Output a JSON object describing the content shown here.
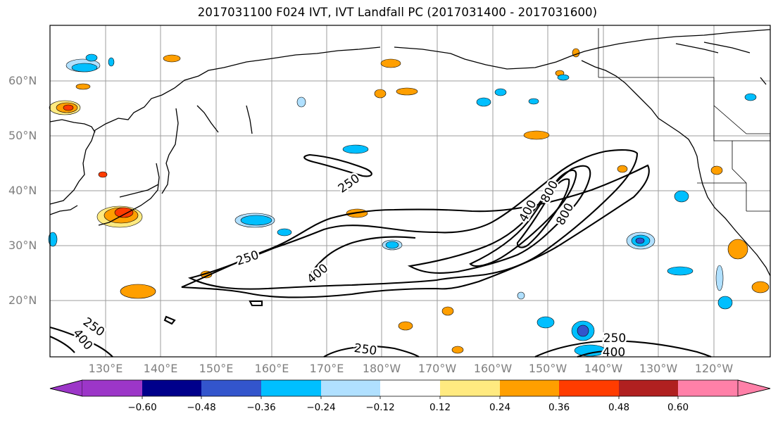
{
  "title": "2017031100 F024 IVT, IVT Landfall PC (2017031400 - 2017031600)",
  "map": {
    "lat_labels": [
      "60°N",
      "50°N",
      "40°N",
      "30°N",
      "20°N"
    ],
    "lon_labels": [
      "130°E",
      "140°E",
      "150°E",
      "160°E",
      "170°E",
      "180°W",
      "170°W",
      "160°W",
      "150°W",
      "140°W",
      "130°W",
      "120°W"
    ],
    "contour_labels": [
      "250",
      "250",
      "400",
      "400",
      "800",
      "800",
      "250",
      "400",
      "250",
      "250",
      "400"
    ],
    "gridlines": true
  },
  "colorbar": {
    "colors": [
      "#9c36c8",
      "#00008b",
      "#3355cc",
      "#00bfff",
      "#b0e0ff",
      "#ffffff",
      "#ffea80",
      "#ff9f00",
      "#ff3c00",
      "#b02020",
      "#ff80a8"
    ],
    "tick_labels": [
      "−0.60",
      "−0.48",
      "−0.36",
      "−0.24",
      "−0.12",
      "0.12",
      "0.24",
      "0.36",
      "0.48",
      "0.60"
    ]
  }
}
